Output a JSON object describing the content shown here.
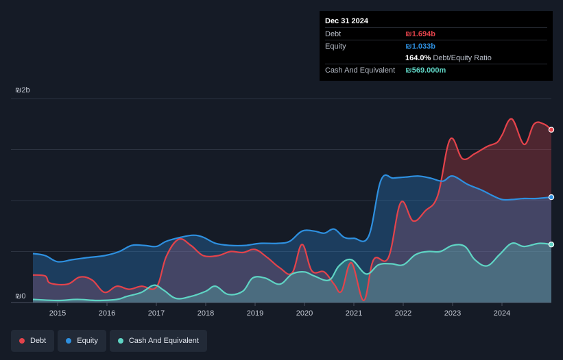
{
  "tooltip": {
    "date": "Dec 31 2024",
    "debt_label": "Debt",
    "debt_value": "₪1.694b",
    "equity_label": "Equity",
    "equity_value": "₪1.033b",
    "ratio_value": "164.0%",
    "ratio_label": "Debt/Equity Ratio",
    "cash_label": "Cash And Equivalent",
    "cash_value": "₪569.000m"
  },
  "legend": [
    {
      "label": "Debt",
      "color": "#e4434b"
    },
    {
      "label": "Equity",
      "color": "#2e90e0"
    },
    {
      "label": "Cash And Equivalent",
      "color": "#5fd4c4"
    }
  ],
  "chart_data": {
    "type": "area",
    "y_top_label": "₪2b",
    "y_bottom_label": "₪0",
    "ylim": [
      0,
      2.0
    ],
    "x_ticks": [
      "2015",
      "2016",
      "2017",
      "2018",
      "2019",
      "2020",
      "2021",
      "2022",
      "2023",
      "2024"
    ],
    "xlim": [
      2014.5,
      2025.0
    ],
    "series": [
      {
        "name": "Debt",
        "color": "#e4434b",
        "points": [
          [
            2014.5,
            0.27
          ],
          [
            2014.75,
            0.26
          ],
          [
            2014.85,
            0.19
          ],
          [
            2015.2,
            0.18
          ],
          [
            2015.45,
            0.25
          ],
          [
            2015.7,
            0.22
          ],
          [
            2015.95,
            0.1
          ],
          [
            2016.2,
            0.16
          ],
          [
            2016.45,
            0.13
          ],
          [
            2016.7,
            0.16
          ],
          [
            2017.0,
            0.15
          ],
          [
            2017.2,
            0.45
          ],
          [
            2017.45,
            0.62
          ],
          [
            2017.7,
            0.56
          ],
          [
            2017.95,
            0.46
          ],
          [
            2018.25,
            0.46
          ],
          [
            2018.5,
            0.5
          ],
          [
            2018.75,
            0.49
          ],
          [
            2019.0,
            0.52
          ],
          [
            2019.25,
            0.44
          ],
          [
            2019.5,
            0.34
          ],
          [
            2019.75,
            0.29
          ],
          [
            2019.95,
            0.57
          ],
          [
            2020.15,
            0.31
          ],
          [
            2020.4,
            0.3
          ],
          [
            2020.6,
            0.18
          ],
          [
            2020.75,
            0.11
          ],
          [
            2020.95,
            0.39
          ],
          [
            2021.2,
            0.02
          ],
          [
            2021.4,
            0.42
          ],
          [
            2021.7,
            0.44
          ],
          [
            2021.95,
            0.98
          ],
          [
            2022.2,
            0.8
          ],
          [
            2022.45,
            0.9
          ],
          [
            2022.7,
            1.05
          ],
          [
            2022.95,
            1.6
          ],
          [
            2023.2,
            1.41
          ],
          [
            2023.45,
            1.46
          ],
          [
            2023.7,
            1.53
          ],
          [
            2023.9,
            1.57
          ],
          [
            2024.0,
            1.64
          ],
          [
            2024.2,
            1.8
          ],
          [
            2024.45,
            1.55
          ],
          [
            2024.65,
            1.75
          ],
          [
            2024.85,
            1.75
          ],
          [
            2025.0,
            1.694
          ]
        ]
      },
      {
        "name": "Equity",
        "color": "#2e90e0",
        "points": [
          [
            2014.5,
            0.48
          ],
          [
            2014.75,
            0.46
          ],
          [
            2015.0,
            0.4
          ],
          [
            2015.3,
            0.42
          ],
          [
            2015.6,
            0.44
          ],
          [
            2015.95,
            0.46
          ],
          [
            2016.25,
            0.5
          ],
          [
            2016.5,
            0.56
          ],
          [
            2016.75,
            0.56
          ],
          [
            2017.0,
            0.55
          ],
          [
            2017.2,
            0.6
          ],
          [
            2017.5,
            0.64
          ],
          [
            2017.75,
            0.66
          ],
          [
            2017.95,
            0.64
          ],
          [
            2018.2,
            0.58
          ],
          [
            2018.5,
            0.56
          ],
          [
            2018.8,
            0.56
          ],
          [
            2019.1,
            0.58
          ],
          [
            2019.45,
            0.58
          ],
          [
            2019.7,
            0.6
          ],
          [
            2019.95,
            0.7
          ],
          [
            2020.2,
            0.7
          ],
          [
            2020.4,
            0.68
          ],
          [
            2020.6,
            0.72
          ],
          [
            2020.8,
            0.64
          ],
          [
            2021.0,
            0.63
          ],
          [
            2021.3,
            0.65
          ],
          [
            2021.55,
            1.2
          ],
          [
            2021.8,
            1.22
          ],
          [
            2022.05,
            1.23
          ],
          [
            2022.3,
            1.24
          ],
          [
            2022.55,
            1.22
          ],
          [
            2022.8,
            1.19
          ],
          [
            2023.0,
            1.24
          ],
          [
            2023.3,
            1.16
          ],
          [
            2023.6,
            1.1
          ],
          [
            2023.8,
            1.05
          ],
          [
            2024.0,
            1.01
          ],
          [
            2024.2,
            1.01
          ],
          [
            2024.45,
            1.02
          ],
          [
            2024.7,
            1.02
          ],
          [
            2025.0,
            1.033
          ]
        ]
      },
      {
        "name": "Cash And Equivalent",
        "color": "#5fd4c4",
        "points": [
          [
            2014.5,
            0.03
          ],
          [
            2015.0,
            0.02
          ],
          [
            2015.4,
            0.03
          ],
          [
            2015.8,
            0.02
          ],
          [
            2016.2,
            0.03
          ],
          [
            2016.4,
            0.06
          ],
          [
            2016.7,
            0.1
          ],
          [
            2016.95,
            0.17
          ],
          [
            2017.15,
            0.12
          ],
          [
            2017.4,
            0.04
          ],
          [
            2017.7,
            0.06
          ],
          [
            2018.0,
            0.11
          ],
          [
            2018.2,
            0.16
          ],
          [
            2018.45,
            0.08
          ],
          [
            2018.75,
            0.11
          ],
          [
            2018.95,
            0.24
          ],
          [
            2019.2,
            0.24
          ],
          [
            2019.5,
            0.18
          ],
          [
            2019.75,
            0.28
          ],
          [
            2020.0,
            0.3
          ],
          [
            2020.2,
            0.26
          ],
          [
            2020.5,
            0.22
          ],
          [
            2020.7,
            0.36
          ],
          [
            2020.95,
            0.42
          ],
          [
            2021.25,
            0.28
          ],
          [
            2021.5,
            0.37
          ],
          [
            2021.75,
            0.38
          ],
          [
            2022.0,
            0.37
          ],
          [
            2022.25,
            0.47
          ],
          [
            2022.5,
            0.5
          ],
          [
            2022.75,
            0.5
          ],
          [
            2023.0,
            0.56
          ],
          [
            2023.25,
            0.55
          ],
          [
            2023.45,
            0.42
          ],
          [
            2023.7,
            0.36
          ],
          [
            2023.95,
            0.47
          ],
          [
            2024.2,
            0.58
          ],
          [
            2024.45,
            0.55
          ],
          [
            2024.75,
            0.58
          ],
          [
            2025.0,
            0.569
          ]
        ]
      }
    ],
    "grid": true,
    "legend_position": "bottom-left"
  }
}
